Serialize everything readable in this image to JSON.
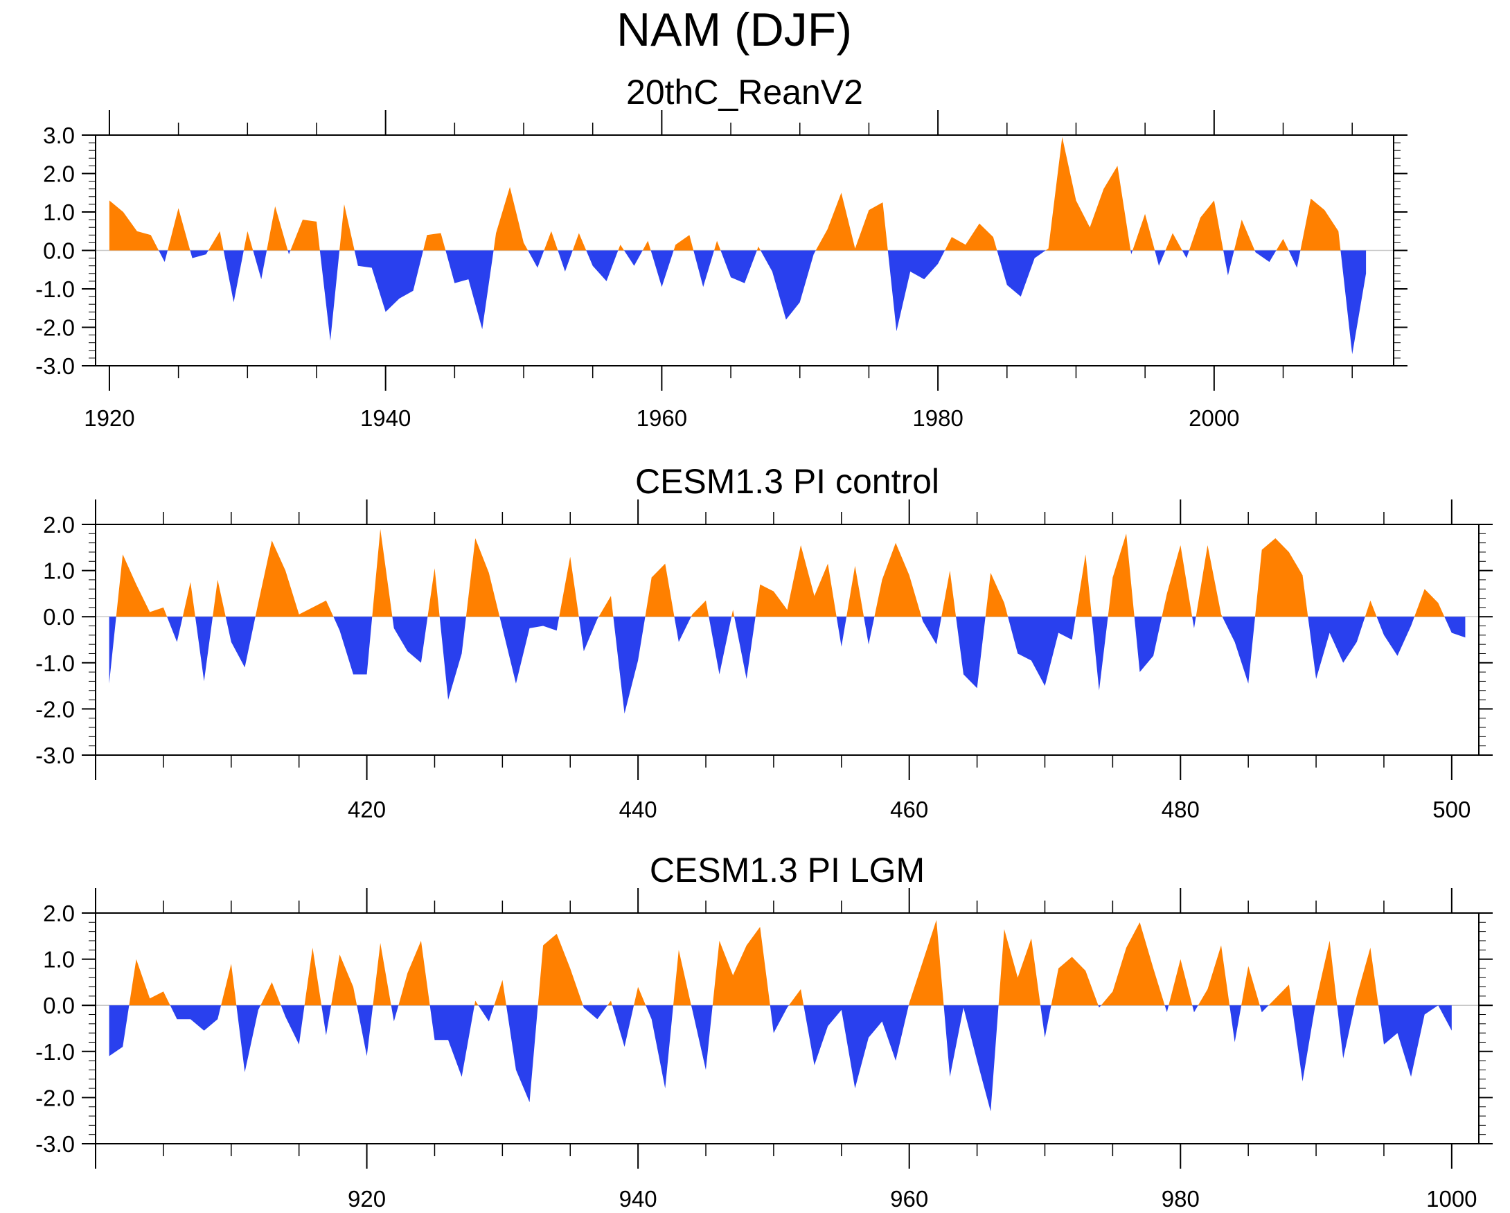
{
  "page_title": "NAM (DJF)",
  "colors": {
    "positive": "#ff8000",
    "negative": "#2940ee",
    "axis": "#000000",
    "zero_line": "#c8c8c8"
  },
  "chart_data": [
    {
      "type": "area",
      "title": "20thC_ReanV2",
      "xlabel": "",
      "ylabel": "",
      "xlim": [
        1919,
        2013
      ],
      "ylim": [
        -3.0,
        3.0
      ],
      "xticks": [
        1920,
        1940,
        1960,
        1980,
        2000
      ],
      "yticks": [
        "3.0",
        "2.0",
        "1.0",
        "0.0",
        "-1.0",
        "-2.0",
        "-3.0"
      ],
      "x_start": 1920,
      "values": [
        1.3,
        1.0,
        0.5,
        0.4,
        -0.3,
        1.1,
        -0.2,
        -0.1,
        0.5,
        -1.35,
        0.5,
        -0.75,
        1.15,
        -0.1,
        0.8,
        0.75,
        -2.35,
        1.2,
        -0.4,
        -0.45,
        -1.6,
        -1.25,
        -1.05,
        0.4,
        0.45,
        -0.85,
        -0.75,
        -2.05,
        0.45,
        1.65,
        0.2,
        -0.45,
        0.5,
        -0.55,
        0.45,
        -0.4,
        -0.8,
        0.15,
        -0.4,
        0.25,
        -0.95,
        0.15,
        0.4,
        -0.95,
        0.25,
        -0.7,
        -0.85,
        0.1,
        -0.55,
        -1.8,
        -1.35,
        -0.1,
        0.55,
        1.5,
        0.05,
        1.05,
        1.25,
        -2.1,
        -0.55,
        -0.75,
        -0.35,
        0.35,
        0.15,
        0.7,
        0.35,
        -0.9,
        -1.2,
        -0.2,
        0.05,
        2.95,
        1.3,
        0.6,
        1.6,
        2.2,
        -0.1,
        0.95,
        -0.4,
        0.45,
        -0.2,
        0.85,
        1.3,
        -0.65,
        0.8,
        -0.05,
        -0.3,
        0.3,
        -0.45,
        1.35,
        1.05,
        0.5,
        -2.7,
        -0.6
      ]
    },
    {
      "type": "area",
      "title": "CESM1.3 PI control",
      "xlabel": "",
      "ylabel": "",
      "xlim": [
        400,
        502
      ],
      "ylim": [
        -3.0,
        2.0
      ],
      "xticks": [
        420,
        440,
        460,
        480,
        500
      ],
      "yticks": [
        "2.0",
        "1.0",
        "0.0",
        "-1.0",
        "-2.0",
        "-3.0"
      ],
      "x_start": 401,
      "values": [
        -1.45,
        1.35,
        0.7,
        0.1,
        0.2,
        -0.55,
        0.75,
        -1.4,
        0.8,
        -0.55,
        -1.1,
        0.3,
        1.65,
        1.0,
        0.05,
        0.2,
        0.35,
        -0.3,
        -1.25,
        -1.25,
        1.9,
        -0.25,
        -0.75,
        -1.0,
        1.05,
        -1.8,
        -0.8,
        1.7,
        0.95,
        -0.25,
        -1.45,
        -0.25,
        -0.2,
        -0.3,
        1.3,
        -0.75,
        -0.05,
        0.45,
        -2.1,
        -0.95,
        0.85,
        1.15,
        -0.55,
        0.05,
        0.35,
        -1.25,
        0.15,
        -1.35,
        0.7,
        0.55,
        0.15,
        1.55,
        0.45,
        1.15,
        -0.65,
        1.1,
        -0.6,
        0.8,
        1.6,
        0.9,
        -0.1,
        -0.6,
        1.0,
        -1.25,
        -1.55,
        0.95,
        0.3,
        -0.8,
        -0.95,
        -1.5,
        -0.35,
        -0.5,
        1.35,
        -1.6,
        0.85,
        1.8,
        -1.2,
        -0.85,
        0.5,
        1.55,
        -0.25,
        1.55,
        0.05,
        -0.55,
        -1.45,
        1.45,
        1.7,
        1.4,
        0.9,
        -1.35,
        -0.35,
        -1.0,
        -0.55,
        0.35,
        -0.4,
        -0.85,
        -0.2,
        0.6,
        0.3,
        -0.35,
        -0.45
      ]
    },
    {
      "type": "area",
      "title": "CESM1.3 PI LGM",
      "xlabel": "",
      "ylabel": "",
      "xlim": [
        900,
        1002
      ],
      "ylim": [
        -3.0,
        2.0
      ],
      "xticks": [
        920,
        940,
        960,
        980,
        1000
      ],
      "yticks": [
        "2.0",
        "1.0",
        "0.0",
        "-1.0",
        "-2.0",
        "-3.0"
      ],
      "x_start": 901,
      "values": [
        -1.1,
        -0.9,
        1.0,
        0.15,
        0.3,
        -0.3,
        -0.3,
        -0.55,
        -0.3,
        0.9,
        -1.45,
        -0.1,
        0.5,
        -0.25,
        -0.85,
        1.25,
        -0.65,
        1.1,
        0.4,
        -1.1,
        1.35,
        -0.35,
        0.7,
        1.4,
        -0.75,
        -0.75,
        -1.55,
        0.1,
        -0.35,
        0.55,
        -1.4,
        -2.1,
        1.3,
        1.55,
        0.8,
        -0.05,
        -0.3,
        0.1,
        -0.9,
        0.4,
        -0.3,
        -1.8,
        1.2,
        -0.1,
        -1.4,
        1.4,
        0.65,
        1.3,
        1.7,
        -0.6,
        -0.05,
        0.35,
        -1.3,
        -0.45,
        -0.1,
        -1.8,
        -0.7,
        -0.35,
        -1.2,
        0.05,
        0.95,
        1.85,
        -1.55,
        -0.05,
        -1.2,
        -2.3,
        1.65,
        0.6,
        1.45,
        -0.7,
        0.8,
        1.05,
        0.75,
        -0.05,
        0.3,
        1.25,
        1.8,
        0.8,
        -0.15,
        1.0,
        -0.15,
        0.35,
        1.3,
        -0.8,
        0.85,
        -0.15,
        0.15,
        0.45,
        -1.65,
        0.1,
        1.4,
        -1.15,
        0.2,
        1.25,
        -0.85,
        -0.6,
        -1.55,
        -0.2,
        0.0,
        -0.55
      ]
    }
  ]
}
